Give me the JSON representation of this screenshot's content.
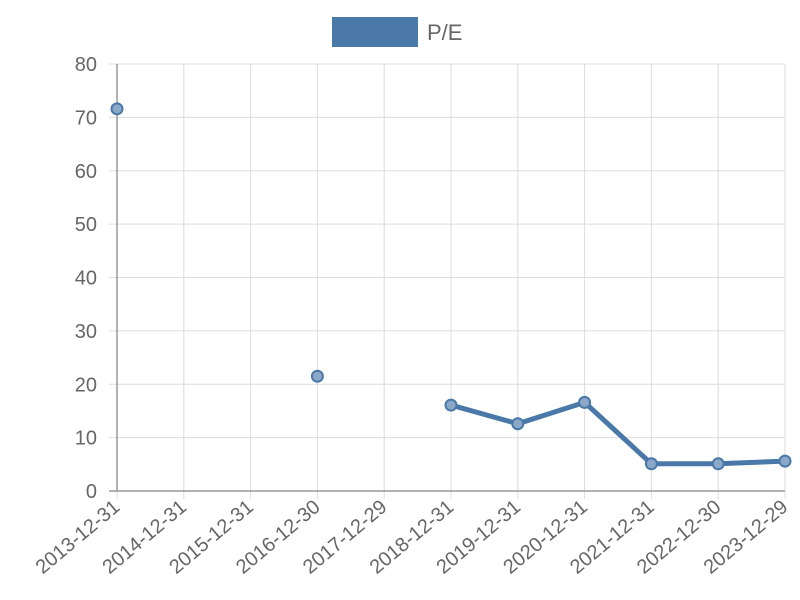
{
  "chart_data": {
    "type": "line",
    "categories": [
      "2013-12-31",
      "2014-12-31",
      "2015-12-31",
      "2016-12-30",
      "2017-12-29",
      "2018-12-31",
      "2019-12-31",
      "2020-12-31",
      "2021-12-31",
      "2022-12-30",
      "2023-12-29"
    ],
    "series": [
      {
        "name": "P/E",
        "color": "#4a78a8",
        "values": [
          71.6,
          null,
          null,
          21.5,
          null,
          16.1,
          12.6,
          16.6,
          5.1,
          5.1,
          5.6
        ]
      }
    ],
    "y_ticks": [
      "0",
      "10",
      "20",
      "30",
      "40",
      "50",
      "60",
      "70",
      "80"
    ],
    "ylim": [
      0,
      80
    ],
    "grid": true,
    "legend_position": "top-center"
  }
}
